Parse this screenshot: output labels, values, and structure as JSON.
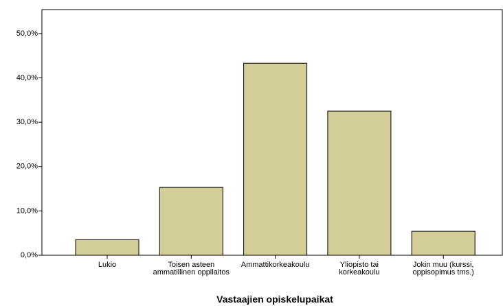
{
  "chart_data": {
    "type": "bar",
    "x_label": "Vastaajien opiskelupaikat",
    "categories": [
      "Lukio",
      "Toisen asteen ammatillinen oppilaitos",
      "Ammattikorkeakoulu",
      "Yliopisto tai korkeakoulu",
      "Jokin muu (kurssi, oppisopimus tms.)"
    ],
    "values": [
      3.5,
      15.3,
      43.3,
      32.5,
      5.4
    ],
    "color": "#d3ce97",
    "ylim": [
      0,
      55.4
    ],
    "yticks": [
      {
        "value": 0,
        "label": "0,0%"
      },
      {
        "value": 10,
        "label": "10,0%"
      },
      {
        "value": 20,
        "label": "20,0%"
      },
      {
        "value": 30,
        "label": "30,0%"
      },
      {
        "value": 40,
        "label": "40,0%"
      },
      {
        "value": 50,
        "label": "50,0%"
      }
    ],
    "grid": false
  }
}
